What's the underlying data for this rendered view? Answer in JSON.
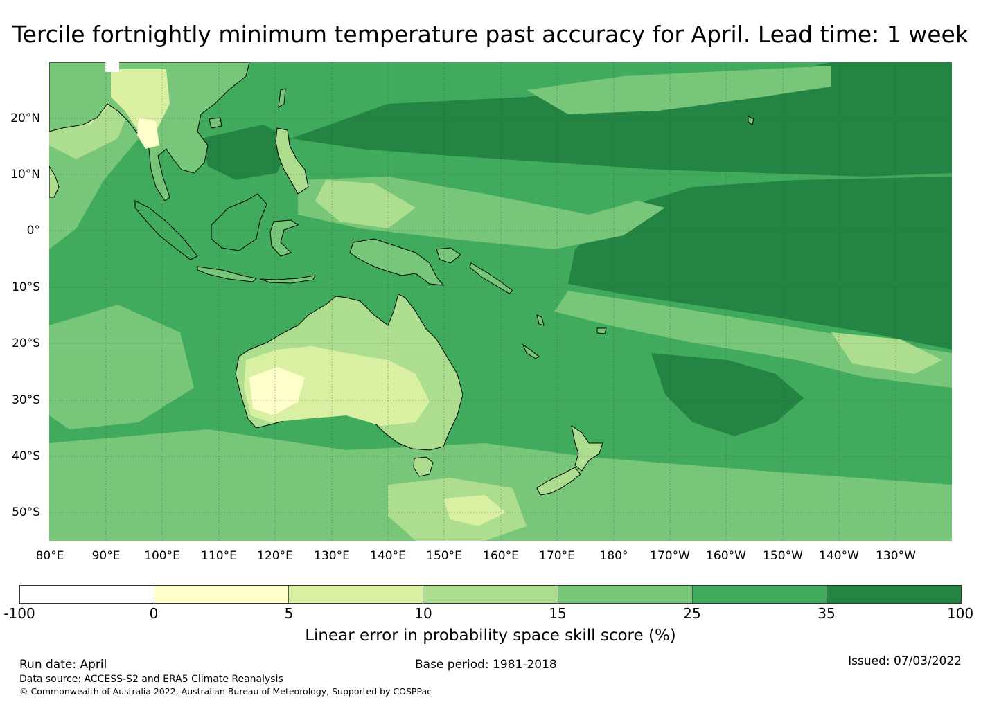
{
  "title": "Tercile fortnightly minimum temperature past accuracy for April. Lead time: 1 week",
  "map": {
    "lon_labels": [
      "80°E",
      "90°E",
      "100°E",
      "110°E",
      "120°E",
      "130°E",
      "140°E",
      "150°E",
      "160°E",
      "170°E",
      "180°",
      "170°W",
      "160°W",
      "150°W",
      "140°W",
      "130°W"
    ],
    "lat_labels": [
      "20°N",
      "10°N",
      "0°",
      "10°S",
      "20°S",
      "30°S",
      "40°S",
      "50°S"
    ],
    "colors": {
      "ocean_base": "#41ab5d",
      "land_base": "#addd8e",
      "coastline": "#000000",
      "grid": "#555555"
    }
  },
  "colorbar": {
    "ticks": [
      "-100",
      "0",
      "5",
      "10",
      "15",
      "25",
      "35",
      "100"
    ],
    "colors": [
      "#ffffff",
      "#ffffcc",
      "#d9f0a3",
      "#addd8e",
      "#78c679",
      "#41ab5d",
      "#238443"
    ],
    "label": "Linear error in probability space skill score (%)"
  },
  "footer": {
    "run_date": "Run date: April",
    "base_period": "Base period: 1981-2018",
    "issued": "Issued: 07/03/2022",
    "data_source": "Data source: ACCESS-S2 and ERA5 Climate Reanalysis",
    "copyright": "© Commonwealth of Australia 2022, Australian Bureau of Meteorology, Supported by COSPPac"
  }
}
